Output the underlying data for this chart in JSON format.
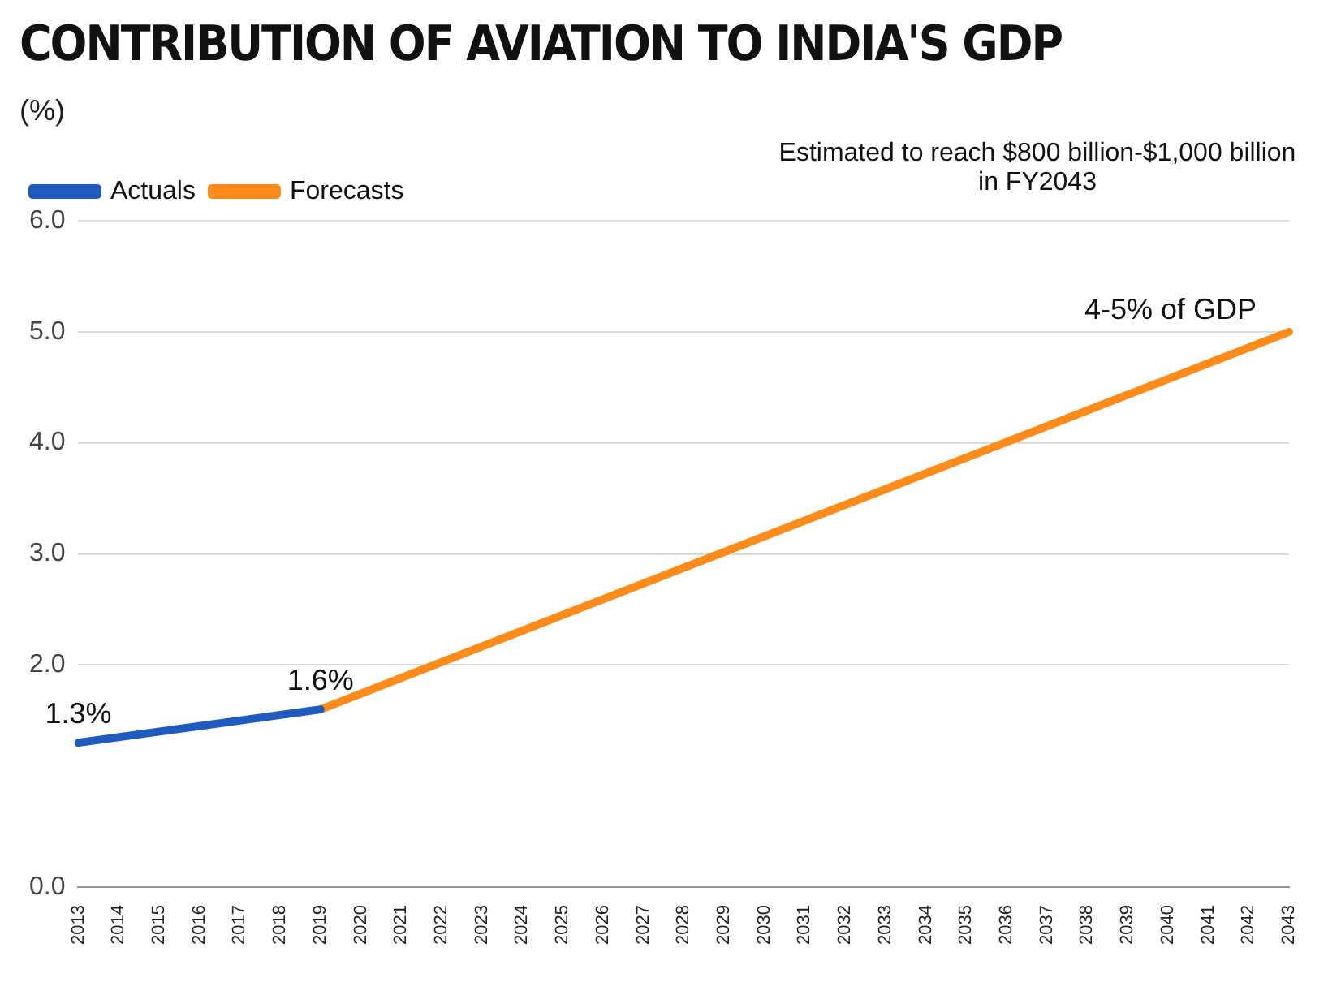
{
  "chart_data": {
    "type": "line",
    "title": "CONTRIBUTION OF AVIATION TO INDIA'S GDP",
    "ylabel": "(%)",
    "categories": [
      "2013",
      "2014",
      "2015",
      "2016",
      "2017",
      "2018",
      "2019",
      "2020",
      "2021",
      "2022",
      "2023",
      "2024",
      "2025",
      "2026",
      "2027",
      "2028",
      "2029",
      "2030",
      "2031",
      "2032",
      "2033",
      "2034",
      "2035",
      "2036",
      "2037",
      "2038",
      "2039",
      "2040",
      "2041",
      "2042",
      "2043"
    ],
    "series": [
      {
        "name": "Actuals",
        "color": "#1f5bbf",
        "values": [
          1.3,
          null,
          null,
          null,
          null,
          null,
          1.6,
          null,
          null,
          null,
          null,
          null,
          null,
          null,
          null,
          null,
          null,
          null,
          null,
          null,
          null,
          null,
          null,
          null,
          null,
          null,
          null,
          null,
          null,
          null,
          null
        ],
        "value_labels": [
          "1.3%",
          null,
          null,
          null,
          null,
          null,
          "1.6%",
          null,
          null,
          null,
          null,
          null,
          null,
          null,
          null,
          null,
          null,
          null,
          null,
          null,
          null,
          null,
          null,
          null,
          null,
          null,
          null,
          null,
          null,
          null,
          null
        ]
      },
      {
        "name": "Forecasts",
        "color": "#ff8c1a",
        "values": [
          null,
          null,
          null,
          null,
          null,
          null,
          1.6,
          null,
          null,
          null,
          null,
          null,
          null,
          null,
          null,
          null,
          null,
          null,
          null,
          null,
          null,
          null,
          null,
          null,
          null,
          null,
          null,
          null,
          null,
          null,
          5.0
        ]
      }
    ],
    "ylim": [
      0,
      6
    ],
    "yticks": [
      {
        "value": 0,
        "label": "0.0"
      },
      {
        "value": 2,
        "label": "2.0"
      },
      {
        "value": 3,
        "label": "3.0"
      },
      {
        "value": 4,
        "label": "4.0"
      },
      {
        "value": 5,
        "label": "5.0"
      },
      {
        "value": 6,
        "label": "6.0"
      }
    ],
    "grid": "y",
    "legend": "top left",
    "marker": "none",
    "line_style": "solid",
    "annotations": [
      "Estimated to reach $800 billion-$1,000 billion in FY2043",
      {
        "text": "4-5% of GDP",
        "x": "2043",
        "y": 5.0
      }
    ]
  }
}
